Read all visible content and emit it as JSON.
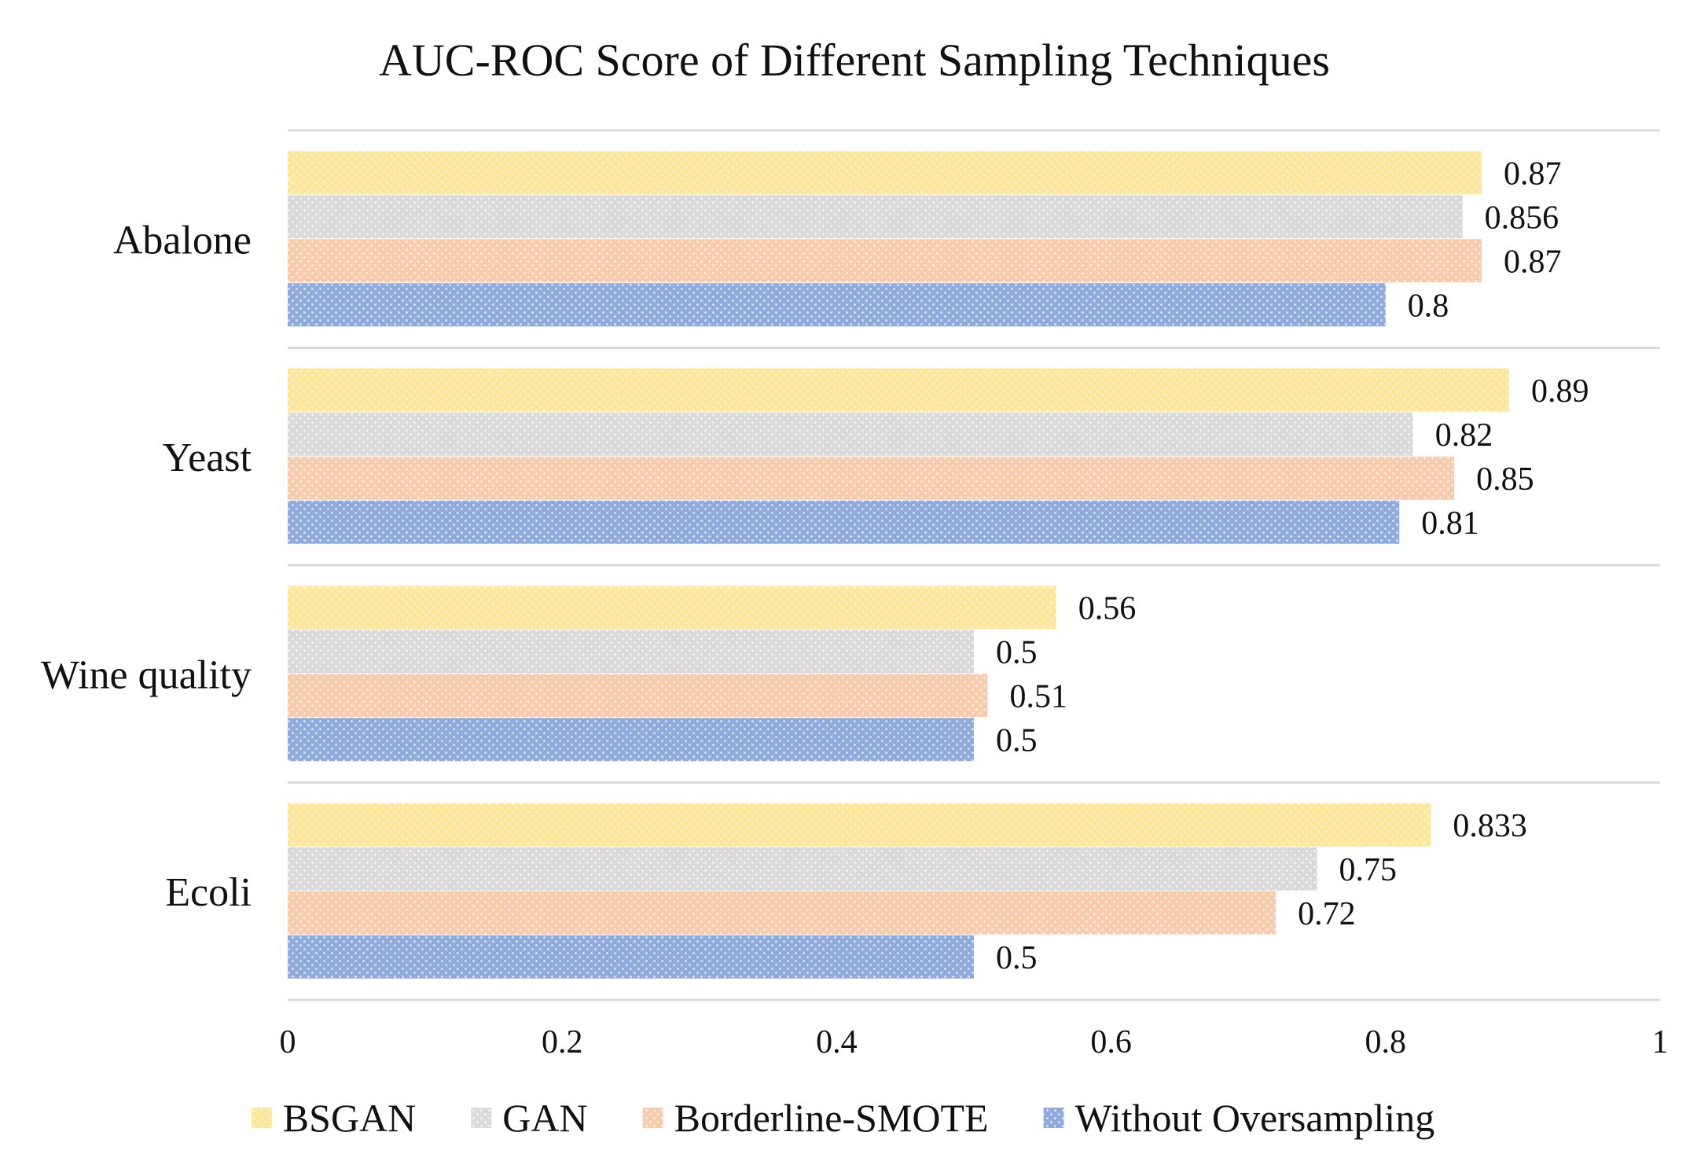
{
  "chart_data": {
    "type": "bar",
    "orientation": "horizontal",
    "title": "AUC-ROC Score of Different Sampling Techniques",
    "categories": [
      "Abalone",
      "Yeast",
      "Wine quality",
      "Ecoli"
    ],
    "series": [
      {
        "name": "BSGAN",
        "color": "#FFE699",
        "values": [
          0.87,
          0.89,
          0.56,
          0.833
        ],
        "labels": [
          "0.87",
          "0.89",
          "0.56",
          "0.833"
        ]
      },
      {
        "name": "GAN",
        "color": "#D9D9D9",
        "values": [
          0.856,
          0.82,
          0.5,
          0.75
        ],
        "labels": [
          "0.856",
          "0.82",
          "0.5",
          "0.75"
        ]
      },
      {
        "name": "Borderline-SMOTE",
        "color": "#F8CBAD",
        "values": [
          0.87,
          0.85,
          0.51,
          0.72
        ],
        "labels": [
          "0.87",
          "0.85",
          "0.51",
          "0.72"
        ]
      },
      {
        "name": "Without Oversampling",
        "color": "#8FAADC",
        "values": [
          0.8,
          0.81,
          0.5,
          0.5
        ],
        "labels": [
          "0.8",
          "0.81",
          "0.5",
          "0.5"
        ]
      }
    ],
    "xlim": [
      0,
      1
    ],
    "xticks": [
      0,
      0.2,
      0.4,
      0.6,
      0.8,
      1
    ],
    "xtick_labels": [
      "0",
      "0.2",
      "0.4",
      "0.6",
      "0.8",
      "1"
    ],
    "xlabel": "",
    "ylabel": "",
    "grid": "horizontal separators between categories",
    "legend_position": "bottom"
  }
}
